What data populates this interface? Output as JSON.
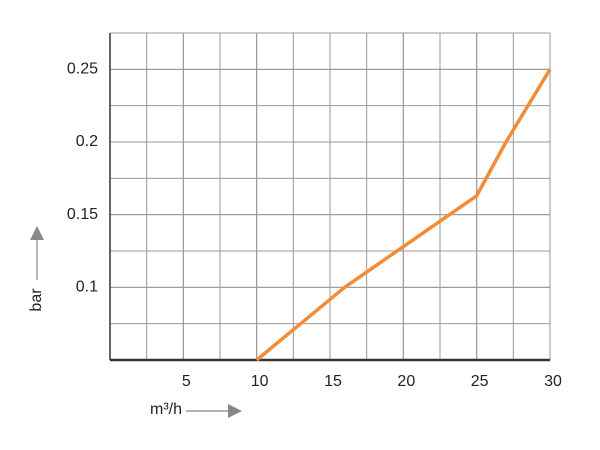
{
  "chart_data": {
    "type": "line",
    "x_label": "m³/h",
    "y_label": "bar",
    "x": [
      10,
      16,
      25,
      27,
      30
    ],
    "series": [
      {
        "color": "#f28c38",
        "values": [
          0.05,
          0.1,
          0.163,
          0.2,
          0.25
        ]
      }
    ],
    "xlim": [
      0,
      30
    ],
    "ylim": [
      0.05,
      0.275
    ],
    "xticks": [
      5,
      10,
      15,
      20,
      25,
      30
    ],
    "yticks": [
      0.1,
      0.15,
      0.2,
      0.25
    ],
    "grid": true
  }
}
